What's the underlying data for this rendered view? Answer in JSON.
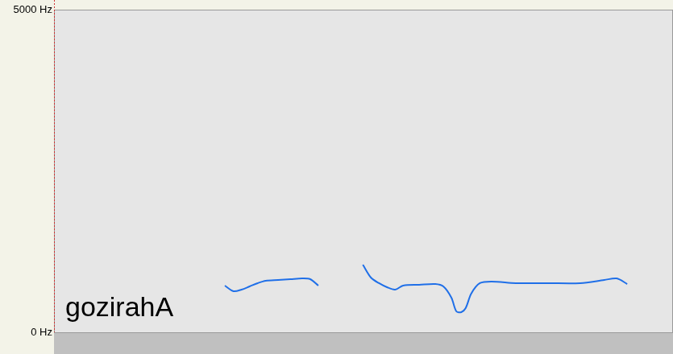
{
  "chart_data": {
    "type": "line",
    "annotations": [
      "gozirahA"
    ],
    "x": [
      0.276,
      0.29,
      0.303,
      0.316,
      0.329,
      0.342,
      0.362,
      0.382,
      0.401,
      0.414,
      0.427,
      0.46,
      0.499,
      0.512,
      0.525,
      0.538,
      0.551,
      0.564,
      0.59,
      0.616,
      0.629,
      0.642,
      0.65,
      0.658,
      0.665,
      0.674,
      0.688,
      0.707,
      0.746,
      0.798,
      0.85,
      0.889,
      0.909,
      0.926
    ],
    "series": [
      {
        "color": "#1f6fe8",
        "marker": "none",
        "line_style": "solid",
        "values": [
          723,
          636,
          661,
          711,
          761,
          798,
          810,
          823,
          835,
          823,
          723,
          null,
          1047,
          848,
          761,
          698,
          661,
          723,
          736,
          748,
          711,
          536,
          324,
          312,
          374,
          599,
          761,
          786,
          761,
          761,
          761,
          810,
          835,
          748
        ]
      }
    ],
    "xlim": [
      0,
      1
    ],
    "ylim": [
      0,
      5000
    ],
    "yticks": [
      {
        "value": 0,
        "label": "0 Hz"
      },
      {
        "value": 5000,
        "label": "5000 Hz"
      }
    ],
    "grid": false,
    "tick_labels": "y"
  }
}
